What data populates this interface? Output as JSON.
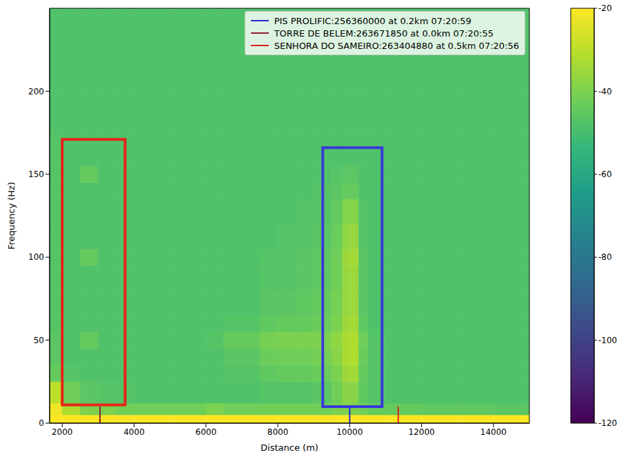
{
  "chart_data": {
    "type": "heatmap",
    "x_label": "Distance (m)",
    "y_label": "Frequency (Hz)",
    "xlim": [
      1650,
      15000
    ],
    "xticks": [
      2000,
      4000,
      6000,
      8000,
      10000,
      12000,
      14000
    ],
    "ylim": [
      0,
      250
    ],
    "yticks": [
      0,
      50,
      100,
      150,
      200
    ],
    "legend": "upper right",
    "x_bins": [
      1650,
      2000,
      2500,
      3000,
      3500,
      4000,
      5000,
      6000,
      6500,
      7500,
      8000,
      8500,
      9000,
      9500,
      9800,
      10000,
      10250,
      10500,
      11000,
      12000,
      13000,
      14000,
      15000
    ],
    "y_bins": [
      0,
      5,
      12,
      25,
      35,
      45,
      55,
      65,
      80,
      95,
      105,
      120,
      135,
      145,
      155,
      175,
      200,
      250
    ],
    "cells": [
      [
        -20,
        -20,
        -20,
        -20,
        -20,
        -20,
        -20,
        -20,
        -20,
        -20,
        -20,
        -20,
        -20,
        -20,
        -20,
        -20,
        -20,
        -20,
        -20,
        -20,
        -20,
        -20
      ],
      [
        -22,
        -32,
        -40,
        -40,
        -42,
        -42,
        -42,
        -40,
        -42,
        -42,
        -42,
        -42,
        -42,
        -40,
        -40,
        -40,
        -42,
        -44,
        -44,
        -45,
        -45,
        -46
      ],
      [
        -30,
        -42,
        -46,
        -47,
        -47,
        -48,
        -48,
        -48,
        -48,
        -47,
        -47,
        -47,
        -46,
        -42,
        -38,
        -38,
        -45,
        -47,
        -48,
        -48,
        -48,
        -48
      ],
      [
        -44,
        -47,
        -48,
        -48,
        -48,
        -48,
        -48,
        -48,
        -47,
        -45,
        -44,
        -44,
        -43,
        -40,
        -35,
        -34,
        -44,
        -47,
        -48,
        -48,
        -48,
        -48
      ],
      [
        -46,
        -48,
        -48,
        -48,
        -48,
        -48,
        -48,
        -48,
        -46,
        -43,
        -42,
        -42,
        -41,
        -38,
        -33,
        -32,
        -43,
        -47,
        -48,
        -48,
        -48,
        -48
      ],
      [
        -46,
        -48,
        -44,
        -48,
        -48,
        -48,
        -48,
        -47,
        -44,
        -41,
        -40,
        -40,
        -40,
        -37,
        -33,
        -32,
        -42,
        -47,
        -48,
        -48,
        -48,
        -48
      ],
      [
        -47,
        -48,
        -48,
        -48,
        -48,
        -48,
        -48,
        -48,
        -47,
        -45,
        -44,
        -44,
        -43,
        -40,
        -35,
        -34,
        -45,
        -48,
        -48,
        -48,
        -48,
        -48
      ],
      [
        -47,
        -48,
        -48,
        -48,
        -48,
        -48,
        -48,
        -48,
        -48,
        -46,
        -46,
        -45,
        -44,
        -41,
        -36,
        -35,
        -46,
        -48,
        -48,
        -48,
        -48,
        -48
      ],
      [
        -47,
        -48,
        -48,
        -48,
        -48,
        -48,
        -48,
        -48,
        -48,
        -47,
        -47,
        -46,
        -45,
        -42,
        -36,
        -35,
        -46,
        -48,
        -48,
        -48,
        -48,
        -48
      ],
      [
        -47,
        -48,
        -44,
        -48,
        -48,
        -48,
        -48,
        -48,
        -48,
        -47,
        -47,
        -46,
        -45,
        -42,
        -35,
        -34,
        -46,
        -48,
        -48,
        -48,
        -48,
        -48
      ],
      [
        -47,
        -48,
        -48,
        -48,
        -48,
        -48,
        -48,
        -48,
        -48,
        -48,
        -47,
        -47,
        -46,
        -43,
        -37,
        -36,
        -47,
        -48,
        -48,
        -48,
        -48,
        -48
      ],
      [
        -47,
        -48,
        -48,
        -48,
        -48,
        -48,
        -48,
        -48,
        -48,
        -48,
        -48,
        -47,
        -47,
        -44,
        -39,
        -39,
        -47,
        -48,
        -48,
        -48,
        -48,
        -48
      ],
      [
        -47,
        -48,
        -48,
        -48,
        -48,
        -48,
        -48,
        -48,
        -48,
        -48,
        -48,
        -48,
        -47,
        -46,
        -44,
        -44,
        -48,
        -48,
        -48,
        -48,
        -48,
        -48
      ],
      [
        -47,
        -48,
        -44,
        -48,
        -48,
        -48,
        -48,
        -48,
        -48,
        -48,
        -48,
        -48,
        -48,
        -47,
        -46,
        -46,
        -48,
        -48,
        -48,
        -48,
        -48,
        -48
      ],
      [
        -47,
        -48,
        -48,
        -48,
        -48,
        -48,
        -48,
        -48,
        -48,
        -48,
        -48,
        -48,
        -48,
        -48,
        -48,
        -48,
        -48,
        -48,
        -48,
        -48,
        -48,
        -48
      ],
      [
        -48,
        -48,
        -48,
        -48,
        -48,
        -48,
        -48,
        -48,
        -48,
        -48,
        -48,
        -48,
        -48,
        -48,
        -48,
        -48,
        -48,
        -48,
        -48,
        -48,
        -48,
        -48
      ],
      [
        -48,
        -48,
        -48,
        -48,
        -48,
        -48,
        -48,
        -48,
        -48,
        -48,
        -48,
        -48,
        -48,
        -48,
        -48,
        -48,
        -48,
        -48,
        -48,
        -48,
        -48,
        -48
      ]
    ],
    "colorbar": {
      "lim": [
        -120,
        -20
      ],
      "ticks": [
        -120,
        -100,
        -80,
        -60,
        -40,
        -20
      ]
    },
    "series": [
      {
        "name": "PIS PROLIFIC:256360000 at 0.2km 07:20:59",
        "color": "#2424d8",
        "x": 10000,
        "y": 10
      },
      {
        "name": "TORRE DE BELEM:263671850 at 0.0km 07:20:55",
        "color": "#8c1c2c",
        "x": 3050,
        "y": 10
      },
      {
        "name": "SENHORA DO SAMEIRO:263404880 at 0.5km 07:20:56",
        "color": "#e02020",
        "x": 11350,
        "y": 10
      }
    ],
    "boxes": [
      {
        "color": "#e8231a",
        "x": [
          2000,
          3750
        ],
        "y": [
          11,
          171
        ]
      },
      {
        "color": "#3a3ad8",
        "x": [
          9250,
          10900
        ],
        "y": [
          10,
          166
        ]
      }
    ]
  }
}
